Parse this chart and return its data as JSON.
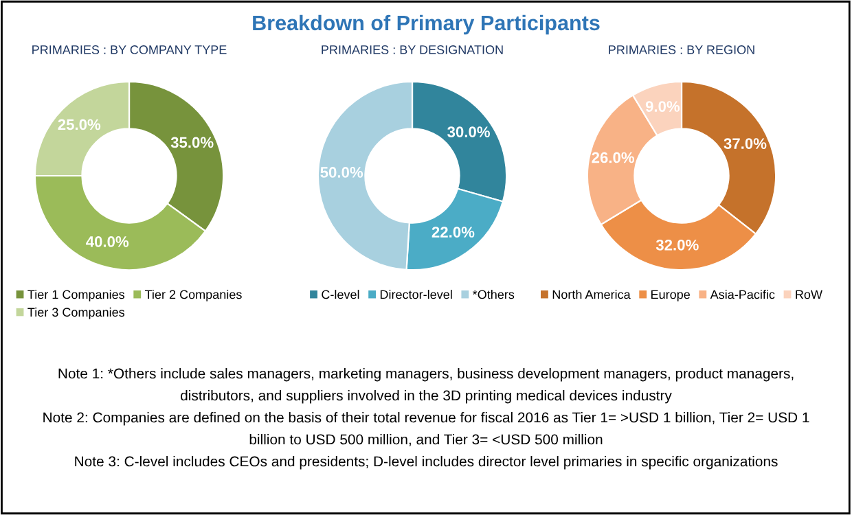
{
  "chart_data": [
    {
      "type": "donut",
      "title": "PRIMARIES : BY COMPANY TYPE",
      "categories": [
        "Tier 1 Companies",
        "Tier 2 Companies",
        "Tier 3 Companies"
      ],
      "values": [
        35,
        40,
        25
      ],
      "value_labels": [
        "35.0%",
        "40.0%",
        "25.0%"
      ],
      "colors": [
        "#77933c",
        "#9bbb59",
        "#c3d69b"
      ],
      "legend": "bottom",
      "annotations": [
        "Breakdown of Primary Participants"
      ]
    },
    {
      "type": "donut",
      "title": "PRIMARIES : BY DESIGNATION",
      "categories": [
        "C-level",
        "Director-level",
        "*Others"
      ],
      "values": [
        30,
        22,
        50
      ],
      "value_labels": [
        "30.0%",
        "22.0%",
        "50.0%"
      ],
      "colors": [
        "#31859c",
        "#4bacc6",
        "#a8d0df"
      ],
      "legend": "bottom"
    },
    {
      "type": "donut",
      "title": "PRIMARIES : BY REGION",
      "categories": [
        "North America",
        "Europe",
        "Asia-Pacific",
        "RoW"
      ],
      "values": [
        37,
        32,
        26,
        9
      ],
      "value_labels": [
        "37.0%",
        "32.0%",
        "26.0%",
        "9.0%"
      ],
      "colors": [
        "#c5722b",
        "#ed8f47",
        "#f8b286",
        "#fbd3bd"
      ],
      "legend": "bottom",
      "annotations": [
        "Note 1: *Others include sales managers, marketing managers, business development managers, product managers, distributors, and suppliers involved in the 3D printing medical devices industry",
        "Note 2: Companies are defined on the basis of their total revenue for fiscal 2016 as Tier 1= >USD 1 billion, Tier 2= USD 1 billion to USD 500 million, and Tier 3= <USD 500 million",
        "Note 3: C-level includes CEOs and presidents; D-level includes director level primaries in specific organizations"
      ]
    }
  ]
}
